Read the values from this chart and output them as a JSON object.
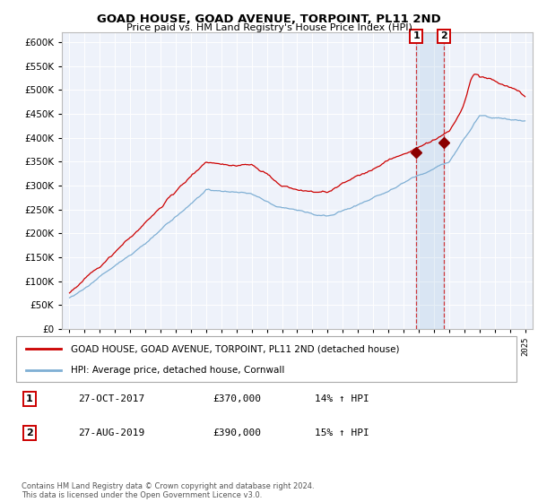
{
  "title": "GOAD HOUSE, GOAD AVENUE, TORPOINT, PL11 2ND",
  "subtitle": "Price paid vs. HM Land Registry's House Price Index (HPI)",
  "legend_line1": "GOAD HOUSE, GOAD AVENUE, TORPOINT, PL11 2ND (detached house)",
  "legend_line2": "HPI: Average price, detached house, Cornwall",
  "annotation1_label": "1",
  "annotation1_date": "27-OCT-2017",
  "annotation1_price": "£370,000",
  "annotation1_hpi": "14% ↑ HPI",
  "annotation2_label": "2",
  "annotation2_date": "27-AUG-2019",
  "annotation2_price": "£390,000",
  "annotation2_hpi": "15% ↑ HPI",
  "footnote": "Contains HM Land Registry data © Crown copyright and database right 2024.\nThis data is licensed under the Open Government Licence v3.0.",
  "red_color": "#cc0000",
  "blue_color": "#7fafd4",
  "background_color": "#eef2fa",
  "ylim": [
    0,
    620000
  ],
  "sale1_year": 2017.83,
  "sale1_value": 370000,
  "sale2_year": 2019.66,
  "sale2_value": 390000
}
